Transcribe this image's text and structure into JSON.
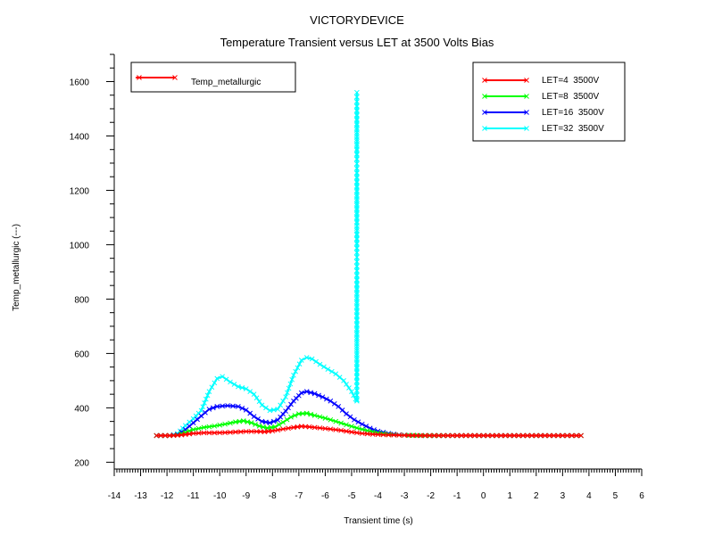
{
  "chart_data": {
    "type": "line",
    "title": "VICTORYDEVICE",
    "subtitle": "Temperature Transient versus LET at 3500 Volts Bias",
    "xlabel": "Transient time (s)",
    "ylabel": "Temp_metallurgic (---)",
    "xlim": [
      -14,
      6
    ],
    "ylim": [
      175,
      1700
    ],
    "x_ticks": [
      -14,
      -13,
      -12,
      -11,
      -10,
      -9,
      -8,
      -7,
      -6,
      -5,
      -4,
      -3,
      -2,
      -1,
      0,
      1,
      2,
      3,
      4,
      5,
      6
    ],
    "y_ticks": [
      200,
      400,
      600,
      800,
      1000,
      1200,
      1400,
      1600
    ],
    "grid": false,
    "quantity_legend": {
      "label": "Temp_metallurgic",
      "color": "#ff0000",
      "placement": "top-left"
    },
    "legend_placement": "top-right",
    "series": [
      {
        "name": "LET=4  3500V",
        "color": "#ff0000",
        "points": [
          [
            -12.4,
            298
          ],
          [
            -11.9,
            298
          ],
          [
            -11.6,
            299
          ],
          [
            -11.3,
            302
          ],
          [
            -11.0,
            306
          ],
          [
            -10.6,
            308
          ],
          [
            -10.2,
            308
          ],
          [
            -9.8,
            309
          ],
          [
            -9.4,
            311
          ],
          [
            -9.0,
            313
          ],
          [
            -8.6,
            313
          ],
          [
            -8.3,
            312
          ],
          [
            -8.0,
            315
          ],
          [
            -7.6,
            322
          ],
          [
            -7.2,
            328
          ],
          [
            -6.9,
            332
          ],
          [
            -6.6,
            330
          ],
          [
            -6.2,
            326
          ],
          [
            -5.8,
            322
          ],
          [
            -5.4,
            317
          ],
          [
            -5.0,
            311
          ],
          [
            -4.6,
            306
          ],
          [
            -4.2,
            303
          ],
          [
            -3.8,
            301
          ],
          [
            -3.4,
            300
          ],
          [
            -3.0,
            299
          ],
          [
            -2.4,
            298
          ],
          [
            -1.0,
            298
          ],
          [
            1.0,
            298
          ],
          [
            3.0,
            298
          ],
          [
            3.7,
            298
          ]
        ]
      },
      {
        "name": "LET=8  3500V",
        "color": "#00ff00",
        "points": [
          [
            -12.4,
            298
          ],
          [
            -11.9,
            298
          ],
          [
            -11.6,
            300
          ],
          [
            -11.3,
            310
          ],
          [
            -11.0,
            320
          ],
          [
            -10.6,
            328
          ],
          [
            -10.2,
            333
          ],
          [
            -9.8,
            340
          ],
          [
            -9.4,
            348
          ],
          [
            -9.1,
            352
          ],
          [
            -8.8,
            345
          ],
          [
            -8.5,
            333
          ],
          [
            -8.2,
            326
          ],
          [
            -7.9,
            330
          ],
          [
            -7.6,
            347
          ],
          [
            -7.3,
            366
          ],
          [
            -7.0,
            378
          ],
          [
            -6.7,
            380
          ],
          [
            -6.4,
            372
          ],
          [
            -6.0,
            362
          ],
          [
            -5.6,
            350
          ],
          [
            -5.2,
            338
          ],
          [
            -4.8,
            326
          ],
          [
            -4.4,
            316
          ],
          [
            -4.0,
            308
          ],
          [
            -3.6,
            303
          ],
          [
            -3.2,
            300
          ],
          [
            -2.8,
            299
          ],
          [
            -2.2,
            298
          ],
          [
            -1.0,
            298
          ],
          [
            1.0,
            298
          ],
          [
            3.0,
            298
          ],
          [
            3.7,
            298
          ]
        ]
      },
      {
        "name": "LET=16  3500V",
        "color": "#0000ff",
        "points": [
          [
            -12.4,
            298
          ],
          [
            -11.9,
            298
          ],
          [
            -11.6,
            302
          ],
          [
            -11.3,
            320
          ],
          [
            -11.0,
            345
          ],
          [
            -10.7,
            370
          ],
          [
            -10.4,
            395
          ],
          [
            -10.1,
            405
          ],
          [
            -9.7,
            408
          ],
          [
            -9.3,
            405
          ],
          [
            -9.0,
            392
          ],
          [
            -8.7,
            368
          ],
          [
            -8.4,
            350
          ],
          [
            -8.1,
            345
          ],
          [
            -7.8,
            355
          ],
          [
            -7.5,
            388
          ],
          [
            -7.2,
            425
          ],
          [
            -6.9,
            455
          ],
          [
            -6.7,
            460
          ],
          [
            -6.4,
            452
          ],
          [
            -6.1,
            440
          ],
          [
            -5.8,
            425
          ],
          [
            -5.5,
            405
          ],
          [
            -5.2,
            378
          ],
          [
            -4.9,
            356
          ],
          [
            -4.6,
            340
          ],
          [
            -4.3,
            325
          ],
          [
            -4.0,
            314
          ],
          [
            -3.6,
            306
          ],
          [
            -3.2,
            301
          ],
          [
            -2.8,
            299
          ],
          [
            -2.2,
            298
          ],
          [
            -1.0,
            298
          ],
          [
            1.0,
            298
          ],
          [
            3.0,
            298
          ],
          [
            3.7,
            298
          ]
        ]
      },
      {
        "name": "LET=32  3500V",
        "color": "#00ffff",
        "points": [
          [
            -12.4,
            298
          ],
          [
            -11.9,
            298
          ],
          [
            -11.6,
            305
          ],
          [
            -11.3,
            335
          ],
          [
            -11.0,
            360
          ],
          [
            -10.7,
            390
          ],
          [
            -10.4,
            460
          ],
          [
            -10.1,
            508
          ],
          [
            -9.9,
            515
          ],
          [
            -9.6,
            495
          ],
          [
            -9.3,
            478
          ],
          [
            -9.0,
            470
          ],
          [
            -8.7,
            450
          ],
          [
            -8.4,
            410
          ],
          [
            -8.1,
            390
          ],
          [
            -7.8,
            395
          ],
          [
            -7.5,
            440
          ],
          [
            -7.2,
            520
          ],
          [
            -6.9,
            575
          ],
          [
            -6.7,
            585
          ],
          [
            -6.5,
            580
          ],
          [
            -6.2,
            560
          ],
          [
            -5.9,
            542
          ],
          [
            -5.6,
            525
          ],
          [
            -5.3,
            500
          ],
          [
            -5.0,
            460
          ],
          [
            -4.85,
            432
          ],
          [
            -4.8,
            430
          ],
          [
            -4.8,
            1560
          ],
          [
            -4.8,
            1440
          ],
          [
            -4.8,
            1370
          ],
          [
            -4.8,
            1280
          ],
          [
            -4.8,
            1160
          ],
          [
            -4.8,
            1080
          ],
          [
            -4.8,
            1040
          ],
          [
            -4.8,
            920
          ],
          [
            -4.8,
            800
          ],
          [
            -4.8,
            720
          ],
          [
            -4.8,
            550
          ],
          [
            -4.8,
            430
          ],
          [
            -4.8,
            425
          ]
        ]
      }
    ]
  }
}
